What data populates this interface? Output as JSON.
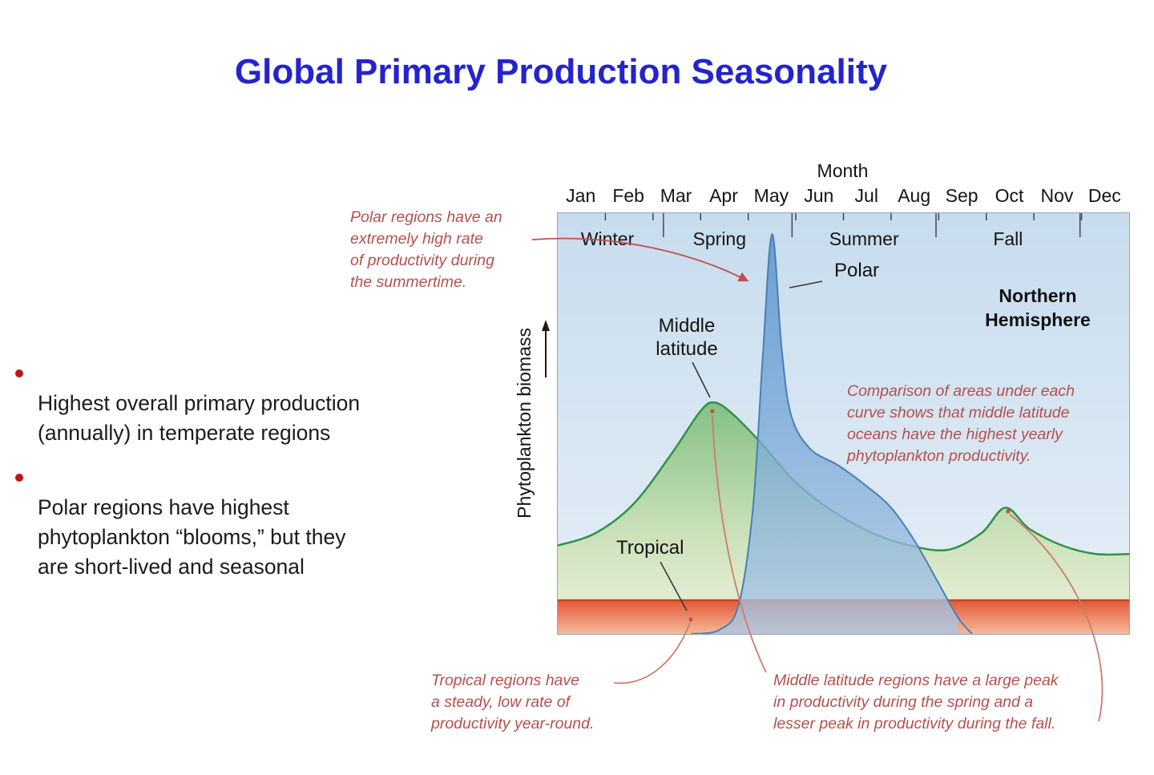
{
  "title": "Global Primary Production Seasonality",
  "bullets": [
    "Highest overall primary production\n(annually) in temperate regions",
    "Polar regions have highest\nphytoplankton “blooms,” but they\nare short-lived and seasonal"
  ],
  "chart_data": {
    "type": "area",
    "xlabel": "Month",
    "ylabel": "Phytoplankton biomass",
    "categories": [
      "Jan",
      "Feb",
      "Mar",
      "Apr",
      "May",
      "Jun",
      "Jul",
      "Aug",
      "Sep",
      "Oct",
      "Nov",
      "Dec"
    ],
    "season_labels": [
      "Winter",
      "Spring",
      "Summer",
      "Fall"
    ],
    "region_label": "Northern\nHemisphere",
    "ylim": [
      0,
      100
    ],
    "x_unit": "months, Jan=0 to Dec-end=12",
    "y_unit": "relative phytoplankton biomass (unlabeled axis, % of polar peak)",
    "curve_labels": {
      "polar": "Polar",
      "middle": "Middle\nlatitude",
      "tropical": "Tropical"
    },
    "series": [
      {
        "name": "Polar",
        "color": "#4f8fcc",
        "points": [
          [
            0,
            0
          ],
          [
            2.8,
            0
          ],
          [
            3.4,
            1
          ],
          [
            3.8,
            7
          ],
          [
            4.1,
            30
          ],
          [
            4.3,
            65
          ],
          [
            4.5,
            95
          ],
          [
            4.7,
            68
          ],
          [
            4.9,
            52
          ],
          [
            5.3,
            44
          ],
          [
            5.9,
            40
          ],
          [
            6.5,
            35
          ],
          [
            7.0,
            30
          ],
          [
            7.5,
            22
          ],
          [
            8.0,
            12
          ],
          [
            8.4,
            4
          ],
          [
            8.7,
            0
          ],
          [
            12,
            0
          ]
        ]
      },
      {
        "name": "Middle latitude",
        "color": "#35984a",
        "points": [
          [
            0,
            21
          ],
          [
            0.8,
            24
          ],
          [
            1.6,
            31
          ],
          [
            2.4,
            43
          ],
          [
            3.0,
            53
          ],
          [
            3.3,
            55
          ],
          [
            3.7,
            52
          ],
          [
            4.3,
            45
          ],
          [
            5.0,
            36
          ],
          [
            5.8,
            29
          ],
          [
            6.6,
            24
          ],
          [
            7.4,
            21
          ],
          [
            8.2,
            20
          ],
          [
            8.9,
            24
          ],
          [
            9.4,
            30
          ],
          [
            9.9,
            25
          ],
          [
            10.6,
            21
          ],
          [
            11.3,
            19
          ],
          [
            12,
            19
          ]
        ]
      },
      {
        "name": "Tropical",
        "color": "#d94f2b",
        "points": [
          [
            0,
            8
          ],
          [
            12,
            8
          ]
        ]
      }
    ],
    "annotations": [
      {
        "id": "polar_note",
        "text": "Polar regions have an\nextremely high rate\nof productivity during\nthe summertime."
      },
      {
        "id": "comparison_note",
        "text": "Comparison of areas under each\ncurve shows that middle latitude\noceans have the highest yearly\nphytoplankton productivity."
      },
      {
        "id": "tropical_note",
        "text": "Tropical regions have\na steady, low rate of\nproductivity year-round."
      },
      {
        "id": "midlat_note",
        "text": "Middle latitude regions have a large peak\nin productivity during the spring and a\nlesser peak in productivity during the fall."
      }
    ]
  }
}
